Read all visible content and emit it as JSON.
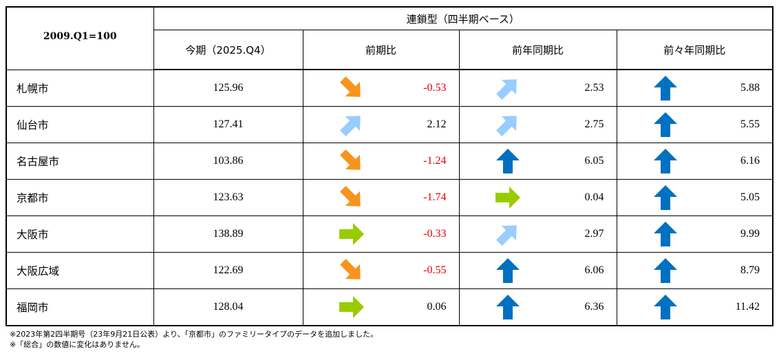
{
  "header": {
    "base_label": "2009.Q1=100",
    "group_title": "連鎖型（四半期ベース）",
    "columns": [
      "今期（2025.Q4）",
      "前期比",
      "前年同期比",
      "前々年同期比"
    ]
  },
  "colors": {
    "negative": "#e00000",
    "down_arrow": "#f7941d",
    "flat_arrow": "#99cc00",
    "up_light_arrow": "#99ccff",
    "up_arrow": "#0070c0"
  },
  "rows": [
    {
      "city": "札幌市",
      "current": "125.96",
      "qoq": {
        "value": "-0.53",
        "trend": "down-icon"
      },
      "yoy": {
        "value": "2.53",
        "trend": "up-right-icon"
      },
      "y2y": {
        "value": "5.88",
        "trend": "up-icon"
      }
    },
    {
      "city": "仙台市",
      "current": "127.41",
      "qoq": {
        "value": "2.12",
        "trend": "up-right-icon"
      },
      "yoy": {
        "value": "2.75",
        "trend": "up-right-icon"
      },
      "y2y": {
        "value": "5.55",
        "trend": "up-icon"
      }
    },
    {
      "city": "名古屋市",
      "current": "103.86",
      "qoq": {
        "value": "-1.24",
        "trend": "down-icon"
      },
      "yoy": {
        "value": "6.05",
        "trend": "up-icon"
      },
      "y2y": {
        "value": "6.16",
        "trend": "up-icon"
      }
    },
    {
      "city": "京都市",
      "current": "123.63",
      "qoq": {
        "value": "-1.74",
        "trend": "down-icon"
      },
      "yoy": {
        "value": "0.04",
        "trend": "flat-icon"
      },
      "y2y": {
        "value": "5.05",
        "trend": "up-icon"
      }
    },
    {
      "city": "大阪市",
      "current": "138.89",
      "qoq": {
        "value": "-0.33",
        "trend": "flat-icon"
      },
      "yoy": {
        "value": "2.97",
        "trend": "up-right-icon"
      },
      "y2y": {
        "value": "9.99",
        "trend": "up-icon"
      }
    },
    {
      "city": "大阪広域",
      "current": "122.69",
      "qoq": {
        "value": "-0.55",
        "trend": "down-icon"
      },
      "yoy": {
        "value": "6.06",
        "trend": "up-icon"
      },
      "y2y": {
        "value": "8.79",
        "trend": "up-icon"
      }
    },
    {
      "city": "福岡市",
      "current": "128.04",
      "qoq": {
        "value": "0.06",
        "trend": "flat-icon"
      },
      "yoy": {
        "value": "6.36",
        "trend": "up-icon"
      },
      "y2y": {
        "value": "11.42",
        "trend": "up-icon"
      }
    }
  ],
  "notes": [
    "※2023年第2四半期号（23年9月21日公表）より、「京都市」のファミリータイプのデータを追加しました。",
    "※「総合」の数値に変化はありません。"
  ]
}
